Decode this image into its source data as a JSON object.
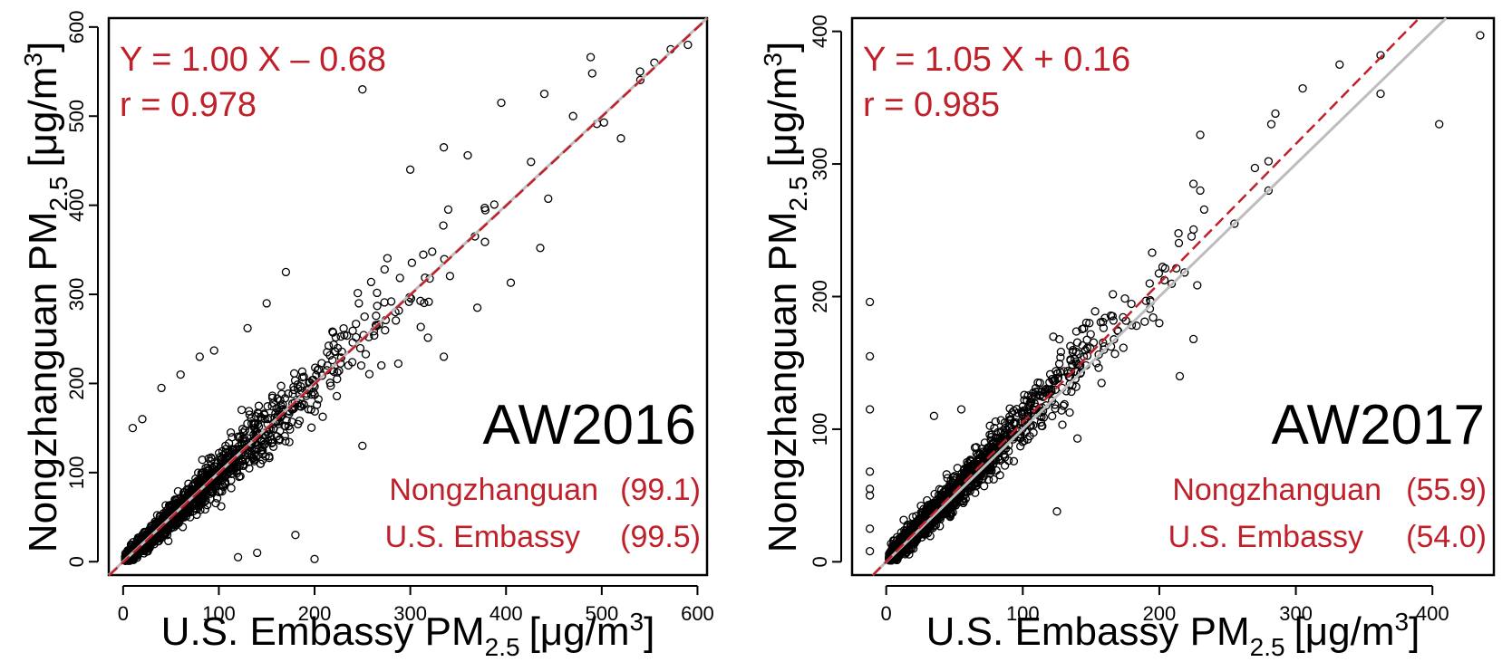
{
  "chart_data": [
    {
      "type": "scatter",
      "panel_label": "AW2016",
      "xlabel": "U.S. Embassy PM",
      "ylabel": "Nongzhanguan PM",
      "label_subscript": "2.5",
      "label_units": "[μg/m",
      "label_units_sup": "3",
      "label_units_close": "]",
      "xlim": [
        -15,
        610
      ],
      "ylim": [
        -15,
        610
      ],
      "xticks": [
        0,
        100,
        200,
        300,
        400,
        500,
        600
      ],
      "yticks": [
        0,
        100,
        200,
        300,
        400,
        500,
        600
      ],
      "xtick_labels": [
        "0",
        "100",
        "200",
        "300",
        "400",
        "500",
        "600"
      ],
      "ytick_labels": [
        "0",
        "100",
        "200",
        "300",
        "400",
        "500",
        "600"
      ],
      "regression": {
        "slope": 1.0,
        "intercept": -0.68,
        "text": "Y = 1.00 X – 0.68"
      },
      "correlation_text": "r  = 0.978",
      "means": [
        {
          "name": "Nongzhanguan",
          "value_text": "(99.1)"
        },
        {
          "name": "U.S. Embassy",
          "value_text": "(99.5)"
        }
      ],
      "grid": false,
      "outliers": [
        [
          250,
          530
        ],
        [
          335,
          465
        ],
        [
          395,
          515
        ],
        [
          440,
          525
        ],
        [
          490,
          548
        ],
        [
          540,
          550
        ],
        [
          572,
          575
        ],
        [
          590,
          580
        ],
        [
          170,
          325
        ],
        [
          95,
          237
        ],
        [
          80,
          230
        ],
        [
          130,
          262
        ],
        [
          200,
          3
        ],
        [
          335,
          230
        ],
        [
          405,
          313
        ],
        [
          370,
          285
        ],
        [
          60,
          210
        ],
        [
          40,
          195
        ],
        [
          20,
          160
        ],
        [
          10,
          150
        ],
        [
          140,
          10
        ],
        [
          180,
          30
        ],
        [
          250,
          130
        ],
        [
          360,
          456
        ],
        [
          470,
          500
        ],
        [
          520,
          475
        ],
        [
          555,
          560
        ],
        [
          300,
          440
        ],
        [
          150,
          290
        ],
        [
          120,
          5
        ]
      ],
      "cloud": {
        "n": 1600,
        "max": 580,
        "scale": 75,
        "spread": 0.09,
        "seed": 7
      }
    },
    {
      "type": "scatter",
      "panel_label": "AW2017",
      "xlabel": "U.S. Embassy PM",
      "ylabel": "Nongzhanguan PM",
      "label_subscript": "2.5",
      "label_units": "[μg/m",
      "label_units_sup": "3",
      "label_units_close": "]",
      "xlim": [
        -25,
        445
      ],
      "ylim": [
        -10,
        410
      ],
      "xticks": [
        0,
        100,
        200,
        300,
        400
      ],
      "yticks": [
        0,
        100,
        200,
        300,
        400
      ],
      "xtick_labels": [
        "0",
        "100",
        "200",
        "300",
        "400"
      ],
      "ytick_labels": [
        "0",
        "100",
        "200",
        "300",
        "400"
      ],
      "regression": {
        "slope": 1.05,
        "intercept": 0.16,
        "text": "Y = 1.05 X + 0.16"
      },
      "correlation_text": "r  = 0.985",
      "means": [
        {
          "name": "Nongzhanguan",
          "value_text": "(55.9)"
        },
        {
          "name": "U.S. Embassy",
          "value_text": "(54.0)"
        }
      ],
      "grid": false,
      "outliers": [
        [
          435,
          397
        ],
        [
          405,
          330
        ],
        [
          362,
          382
        ],
        [
          362,
          353
        ],
        [
          332,
          375
        ],
        [
          305,
          357
        ],
        [
          285,
          338
        ],
        [
          282,
          330
        ],
        [
          280,
          302
        ],
        [
          280,
          280
        ],
        [
          270,
          297
        ],
        [
          255,
          255
        ],
        [
          230,
          322
        ],
        [
          225,
          168
        ],
        [
          225,
          285
        ],
        [
          230,
          280
        ],
        [
          -12,
          196
        ],
        [
          -12,
          155
        ],
        [
          -12,
          115
        ],
        [
          -12,
          68
        ],
        [
          -12,
          55
        ],
        [
          -12,
          50
        ],
        [
          -12,
          25
        ],
        [
          -12,
          8
        ],
        [
          125,
          38
        ],
        [
          140,
          93
        ],
        [
          55,
          115
        ],
        [
          200,
          180
        ],
        [
          215,
          140
        ],
        [
          35,
          110
        ]
      ],
      "cloud": {
        "n": 1600,
        "max": 240,
        "scale": 45,
        "spread": 0.07,
        "seed": 11
      }
    }
  ]
}
